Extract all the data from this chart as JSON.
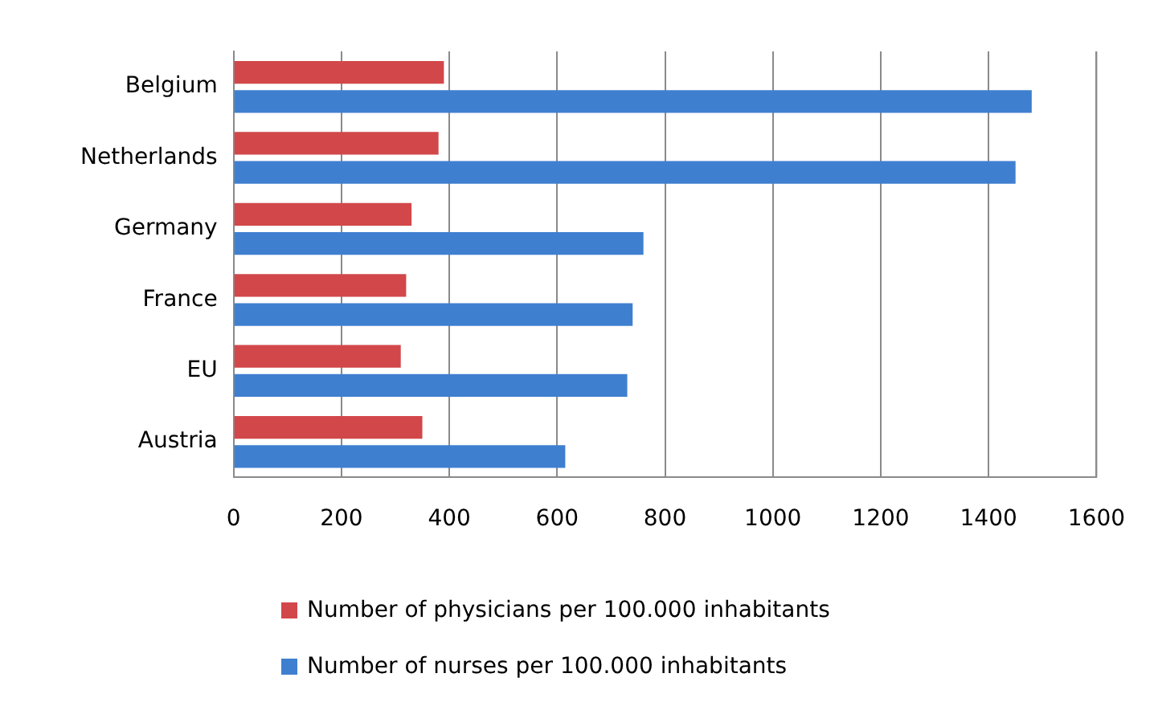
{
  "chart_data": {
    "type": "bar",
    "orientation": "horizontal",
    "categories": [
      "Belgium",
      "Netherlands",
      "Germany",
      "France",
      "EU",
      "Austria"
    ],
    "series": [
      {
        "name": "Number of physicians per 100.000 inhabitants",
        "color": "#d2474a",
        "values": [
          390,
          380,
          330,
          320,
          310,
          350
        ]
      },
      {
        "name": "Number of nurses per 100.000 inhabitants",
        "color": "#3f7fd0",
        "values": [
          1480,
          1450,
          760,
          740,
          730,
          615
        ]
      }
    ],
    "xlim": [
      0,
      1600
    ],
    "xticks": [
      0,
      200,
      400,
      600,
      800,
      1000,
      1200,
      1400,
      1600
    ],
    "grid": "x",
    "legend": "bottom"
  }
}
